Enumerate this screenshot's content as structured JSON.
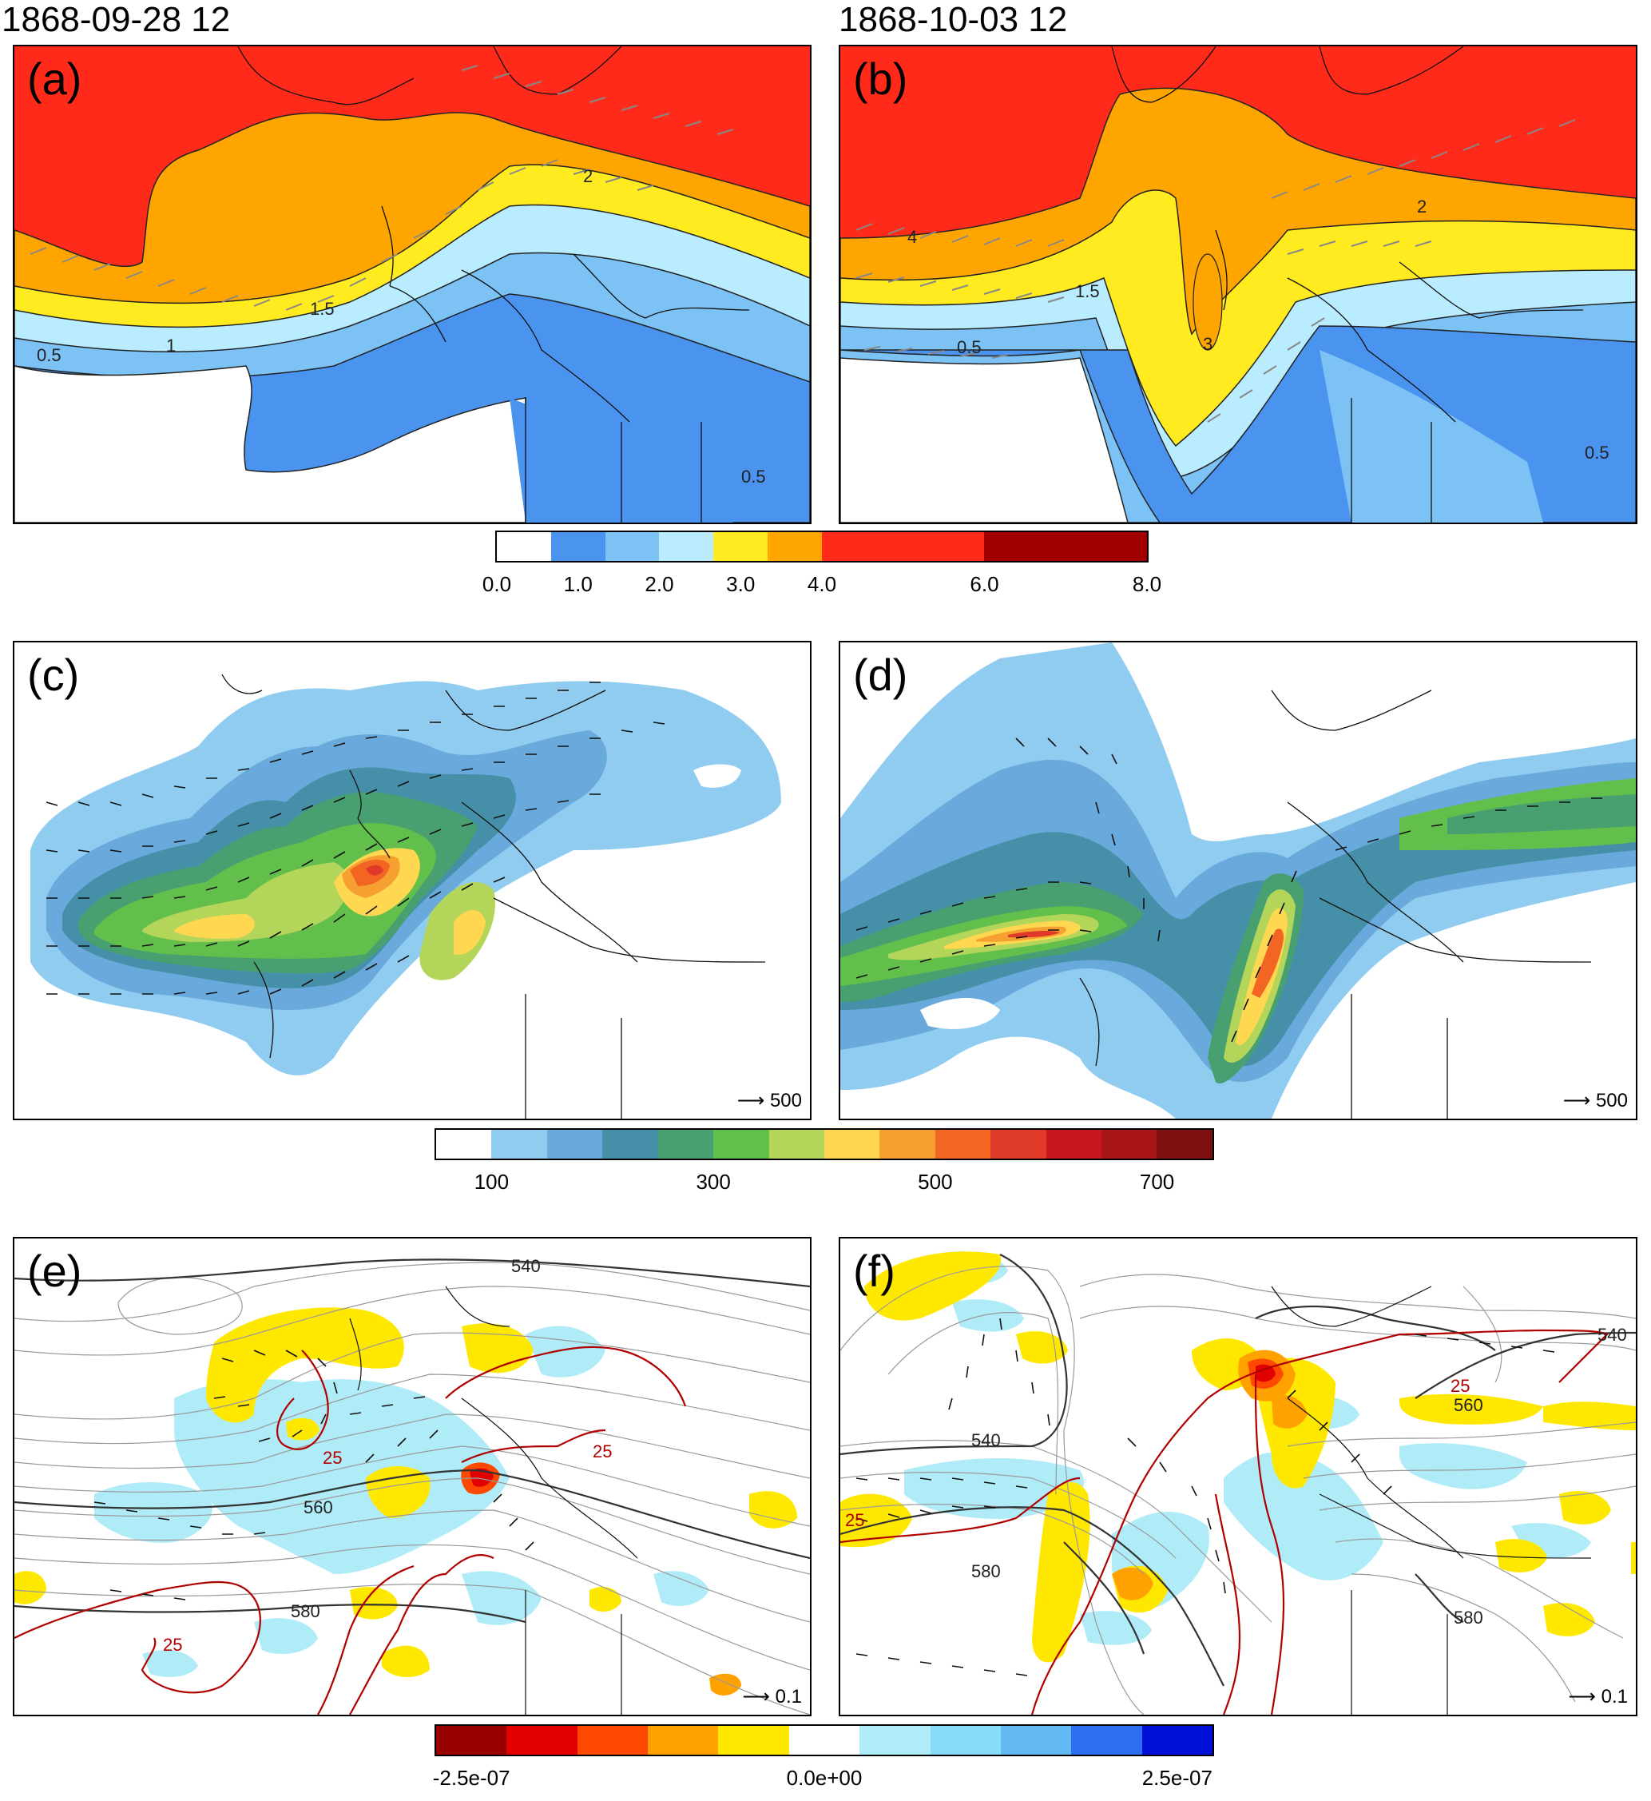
{
  "dates": [
    "1868-09-28 12",
    "1868-10-03 12"
  ],
  "panels": {
    "a": {
      "label": "(a)",
      "contour_labels": [
        "0.5",
        "1",
        "1.5",
        "2",
        "0.5"
      ]
    },
    "b": {
      "label": "(b)",
      "contour_labels": [
        "4",
        "1.5",
        "0.5",
        "2",
        "3",
        "0.5"
      ]
    },
    "c": {
      "label": "(c)",
      "ref_vector": "500"
    },
    "d": {
      "label": "(d)",
      "ref_vector": "500"
    },
    "e": {
      "label": "(e)",
      "ref_vector": "0.1",
      "contour_labels": [
        "540",
        "560",
        "580",
        "25",
        "25",
        "25"
      ]
    },
    "f": {
      "label": "(f)",
      "ref_vector": "0.1",
      "contour_labels": [
        "540",
        "540",
        "580",
        "560",
        "580",
        "25",
        "25"
      ]
    }
  },
  "colorbars": {
    "top": {
      "colors": [
        "#ffffff",
        "#4a93ef",
        "#7cc2f5",
        "#b9ecff",
        "#ffeb1f",
        "#ffa500",
        "#ff2a1a",
        "#ff2a1a",
        "#ff2a1a",
        "#a20000",
        "#a20000",
        "#a20000"
      ],
      "ticks": [
        "0.0",
        "1.0",
        "2.0",
        "3.0",
        "4.0",
        "6.0",
        "8.0"
      ],
      "tick_values": [
        0,
        1,
        2,
        3,
        4,
        6,
        8
      ],
      "range": [
        0,
        8
      ]
    },
    "middle": {
      "colors": [
        "#ffffff",
        "#8fccef",
        "#69a9db",
        "#4590a8",
        "#48a070",
        "#62bf4c",
        "#b3d65a",
        "#ffd750",
        "#f5a030",
        "#f26522",
        "#e03a2a",
        "#c8181e",
        "#a8161a",
        "#7f1010"
      ],
      "ticks": [
        "100",
        "300",
        "500",
        "700"
      ],
      "tick_values": [
        100,
        300,
        500,
        700
      ],
      "range": [
        50,
        750
      ]
    },
    "bottom": {
      "colors": [
        "#9b0000",
        "#e30000",
        "#ff4800",
        "#ffa200",
        "#ffe800",
        "#ffffff",
        "#b0ecf7",
        "#87dcf8",
        "#63baf2",
        "#2f6ef0",
        "#0010d6"
      ],
      "ticks": [
        "-2.5e-07",
        "0.0e+00",
        "2.5e-07"
      ],
      "tick_values": [
        -2.5e-07,
        0,
        2.5e-07
      ],
      "range": [
        -2.75e-07,
        2.75e-07
      ]
    }
  }
}
